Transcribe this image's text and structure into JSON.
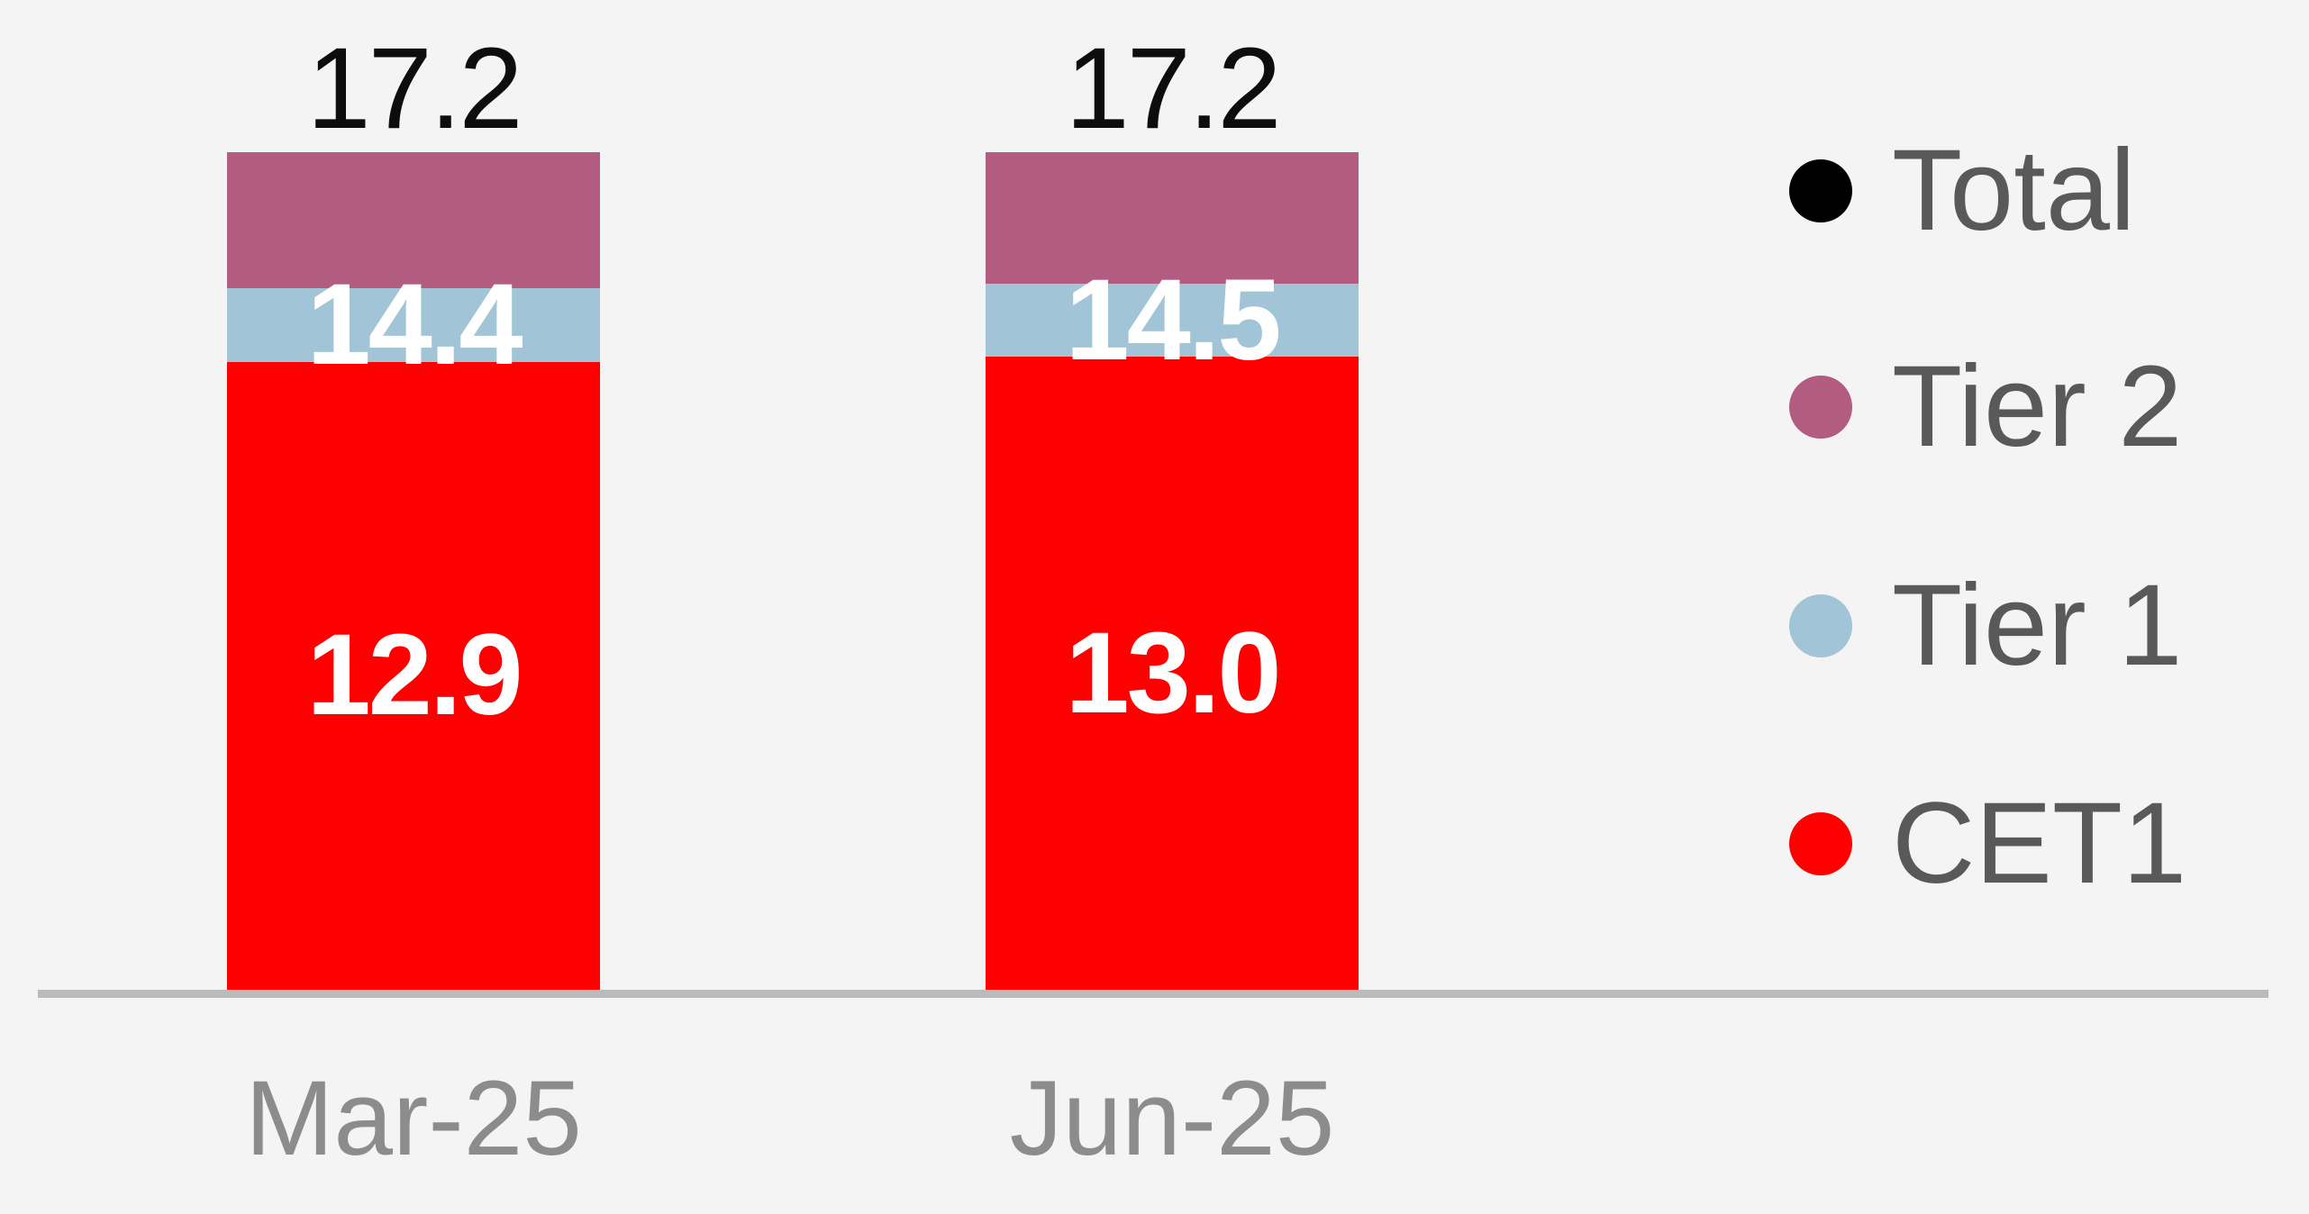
{
  "chart_data": {
    "type": "bar",
    "stacked": true,
    "note": "capital ratio stacked bars; series values are cumulative ratio levels as labeled on chart",
    "categories": [
      "Mar-25",
      "Jun-25"
    ],
    "series": [
      {
        "name": "CET1",
        "color": "#FE0000",
        "values": [
          12.9,
          13.0
        ]
      },
      {
        "name": "Tier 1",
        "color": "#A1C4D6",
        "values": [
          14.4,
          14.5
        ]
      },
      {
        "name": "Tier 2",
        "color": "#B25C81",
        "values": [
          17.2,
          17.2
        ]
      },
      {
        "name": "Total",
        "color": "#000000",
        "values": [
          17.2,
          17.2
        ]
      }
    ],
    "title": "",
    "xlabel": "",
    "ylabel": "",
    "ylim": [
      0,
      17.2
    ],
    "grid": false,
    "legend_position": "right",
    "data_labels": {
      "total": [
        "17.2",
        "17.2"
      ],
      "tier1": [
        "14.4",
        "14.5"
      ],
      "cet1": [
        "12.9",
        "13.0"
      ]
    }
  },
  "bars": [
    {
      "category": "Mar-25",
      "total_label": "17.2",
      "tier1_label": "14.4",
      "cet1_label": "12.9"
    },
    {
      "category": "Jun-25",
      "total_label": "17.2",
      "tier1_label": "14.5",
      "cet1_label": "13.0"
    }
  ],
  "legend": {
    "items": [
      {
        "label": "Total",
        "color": "#000000"
      },
      {
        "label": "Tier 2",
        "color": "#B25C81"
      },
      {
        "label": "Tier 1",
        "color": "#A1C4D6"
      },
      {
        "label": "CET1",
        "color": "#FE0000"
      }
    ]
  },
  "colors": {
    "background": "#F5F4F4",
    "axis_line": "#BBBBBB",
    "axis_label_text": "#8C8C8C",
    "legend_text": "#595959",
    "total_label_text": "#0D0D0D",
    "value_label_text": "#FFFFFF"
  }
}
